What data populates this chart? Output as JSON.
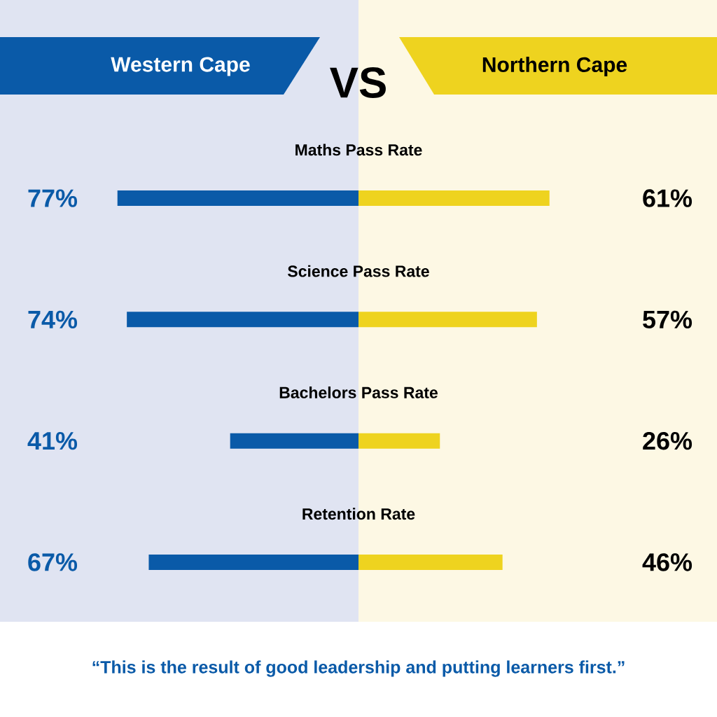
{
  "chart_data": [
    {
      "type": "bar",
      "orientation": "horizontal",
      "title": "VS",
      "categories": [
        "Maths Pass Rate",
        "Science Pass Rate",
        "Bachelors Pass Rate",
        "Retention Rate"
      ],
      "series": [
        {
          "name": "Western Cape",
          "color": "#0a5aa8",
          "values": [
            77,
            74,
            41,
            67
          ],
          "value_labels": [
            "77%",
            "74%",
            "41%",
            "67%"
          ]
        }
      ],
      "annotations": [
        "“This is the result of good leadership and putting learners first.”"
      ]
    },
    {
      "type": "bar",
      "orientation": "horizontal",
      "categories": [
        null,
        null,
        null,
        null
      ],
      "series": [
        {
          "name": "Northern Cape",
          "color": "#eed31f",
          "values": [
            61,
            57,
            26,
            46
          ],
          "value_labels": [
            "61%",
            "57%",
            "26%",
            "46%"
          ]
        }
      ]
    }
  ]
}
